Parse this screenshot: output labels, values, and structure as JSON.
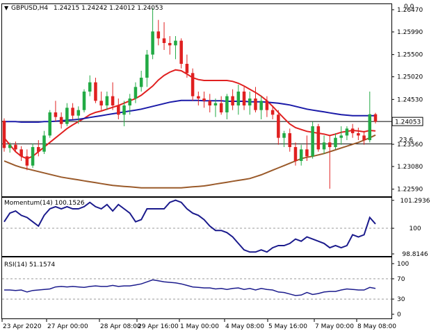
{
  "header": {
    "symbol": "GBPUSD,H4",
    "ohlc": "1.24215 1.24242 1.24012 1.24053",
    "corner_value": "0.0"
  },
  "colors": {
    "bull": "#22aa44",
    "bear": "#e02020",
    "ma_fast": "#e02020",
    "ma_mid": "#1a1aa8",
    "ma_slow": "#9a5a2a",
    "indicator": "#1a1a8c",
    "grid": "#9a9a9a",
    "price_tag_bg": "#ffffff"
  },
  "chart_data": [
    {
      "type": "candlestick",
      "title": "GBPUSD,H4",
      "y_ticks": [
        "1.26470",
        "1.25990",
        "1.25500",
        "1.25020",
        "1.24530",
        "1.24053",
        "1.23560",
        "1.23080",
        "1.22590"
      ],
      "ylim": [
        1.2245,
        1.2656
      ],
      "current_price": "1.24053",
      "fib_level": {
        "label": "23.6",
        "value": 1.2357
      },
      "candles": [
        [
          1.2407,
          1.2412,
          1.234,
          1.2348
        ],
        [
          1.2348,
          1.236,
          1.2338,
          1.2355
        ],
        [
          1.2355,
          1.2362,
          1.234,
          1.2345
        ],
        [
          1.2345,
          1.2352,
          1.232,
          1.233
        ],
        [
          1.233,
          1.2345,
          1.23,
          1.231
        ],
        [
          1.231,
          1.2358,
          1.2305,
          1.235
        ],
        [
          1.235,
          1.2365,
          1.233,
          1.234
        ],
        [
          1.234,
          1.2385,
          1.2335,
          1.2375
        ],
        [
          1.2375,
          1.243,
          1.237,
          1.2425
        ],
        [
          1.2425,
          1.245,
          1.2405,
          1.2415
        ],
        [
          1.2415,
          1.2425,
          1.239,
          1.24
        ],
        [
          1.24,
          1.2445,
          1.2395,
          1.2435
        ],
        [
          1.2435,
          1.2445,
          1.241,
          1.2418
        ],
        [
          1.2418,
          1.2438,
          1.24,
          1.243
        ],
        [
          1.243,
          1.2475,
          1.2425,
          1.247
        ],
        [
          1.247,
          1.2505,
          1.246,
          1.249
        ],
        [
          1.249,
          1.25,
          1.2445,
          1.245
        ],
        [
          1.245,
          1.247,
          1.243,
          1.244
        ],
        [
          1.244,
          1.247,
          1.243,
          1.246
        ],
        [
          1.246,
          1.249,
          1.243,
          1.244
        ],
        [
          1.244,
          1.2455,
          1.241,
          1.242
        ],
        [
          1.242,
          1.245,
          1.2395,
          1.244
        ],
        [
          1.244,
          1.2465,
          1.242,
          1.2455
        ],
        [
          1.2455,
          1.249,
          1.2445,
          1.248
        ],
        [
          1.248,
          1.2515,
          1.247,
          1.25
        ],
        [
          1.25,
          1.256,
          1.248,
          1.255
        ],
        [
          1.255,
          1.265,
          1.254,
          1.26
        ],
        [
          1.26,
          1.2625,
          1.257,
          1.2585
        ],
        [
          1.2585,
          1.262,
          1.256,
          1.2575
        ],
        [
          1.2575,
          1.259,
          1.255,
          1.257
        ],
        [
          1.257,
          1.259,
          1.254,
          1.258
        ],
        [
          1.258,
          1.2585,
          1.252,
          1.253
        ],
        [
          1.253,
          1.255,
          1.25,
          1.251
        ],
        [
          1.251,
          1.252,
          1.245,
          1.246
        ],
        [
          1.246,
          1.247,
          1.244,
          1.2455
        ],
        [
          1.2455,
          1.247,
          1.2435,
          1.245
        ],
        [
          1.245,
          1.2465,
          1.2425,
          1.244
        ],
        [
          1.244,
          1.2455,
          1.2415,
          1.2445
        ],
        [
          1.2445,
          1.246,
          1.242,
          1.2425
        ],
        [
          1.2425,
          1.2465,
          1.241,
          1.246
        ],
        [
          1.246,
          1.2475,
          1.243,
          1.244
        ],
        [
          1.244,
          1.2485,
          1.242,
          1.247
        ],
        [
          1.247,
          1.248,
          1.243,
          1.244
        ],
        [
          1.244,
          1.247,
          1.242,
          1.2455
        ],
        [
          1.2455,
          1.248,
          1.2425,
          1.243
        ],
        [
          1.243,
          1.246,
          1.241,
          1.245
        ],
        [
          1.245,
          1.246,
          1.2415,
          1.243
        ],
        [
          1.243,
          1.244,
          1.241,
          1.242
        ],
        [
          1.242,
          1.243,
          1.2355,
          1.237
        ],
        [
          1.237,
          1.2385,
          1.235,
          1.238
        ],
        [
          1.238,
          1.239,
          1.234,
          1.235
        ],
        [
          1.235,
          1.236,
          1.231,
          1.232
        ],
        [
          1.232,
          1.2355,
          1.231,
          1.2345
        ],
        [
          1.2345,
          1.2375,
          1.232,
          1.233
        ],
        [
          1.233,
          1.2405,
          1.2325,
          1.2395
        ],
        [
          1.2395,
          1.24,
          1.234,
          1.2345
        ],
        [
          1.2345,
          1.2375,
          1.2335,
          1.236
        ],
        [
          1.236,
          1.2375,
          1.226,
          1.235
        ],
        [
          1.235,
          1.238,
          1.2345,
          1.237
        ],
        [
          1.237,
          1.2395,
          1.2355,
          1.2375
        ],
        [
          1.2375,
          1.2395,
          1.2365,
          1.239
        ],
        [
          1.239,
          1.24,
          1.237,
          1.238
        ],
        [
          1.238,
          1.2392,
          1.2365,
          1.2375
        ],
        [
          1.2375,
          1.2385,
          1.2355,
          1.2365
        ],
        [
          1.2365,
          1.247,
          1.236,
          1.2421
        ],
        [
          1.2421,
          1.2424,
          1.2401,
          1.2405
        ]
      ],
      "series": [
        {
          "name": "",
          "color_key": "ma_fast",
          "values": [
            1.237,
            1.2355,
            1.234,
            1.233,
            1.2325,
            1.233,
            1.234,
            1.235,
            1.236,
            1.237,
            1.238,
            1.239,
            1.2398,
            1.2405,
            1.2412,
            1.242,
            1.2425,
            1.2428,
            1.2432,
            1.2436,
            1.244,
            1.2445,
            1.245,
            1.2455,
            1.2462,
            1.2472,
            1.2482,
            1.2495,
            1.2505,
            1.2512,
            1.2517,
            1.2515,
            1.2508,
            1.25,
            1.2496,
            1.2494,
            1.2494,
            1.2494,
            1.2494,
            1.2494,
            1.2492,
            1.2488,
            1.2482,
            1.2475,
            1.2468,
            1.246,
            1.245,
            1.2438,
            1.2425,
            1.2412,
            1.24,
            1.2392,
            1.2388,
            1.2384,
            1.2382,
            1.238,
            1.2378,
            1.2375,
            1.2378,
            1.2382,
            1.2384,
            1.2386,
            1.2385,
            1.2383,
            1.2386,
            1.2385
          ]
        },
        {
          "name": "",
          "color_key": "ma_mid",
          "values": [
            1.2405,
            1.2405,
            1.2405,
            1.2404,
            1.2404,
            1.2404,
            1.2404,
            1.2405,
            1.2405,
            1.2406,
            1.2407,
            1.2408,
            1.2409,
            1.241,
            1.2412,
            1.2414,
            1.2416,
            1.2418,
            1.242,
            1.2422,
            1.2424,
            1.2426,
            1.2428,
            1.243,
            1.2432,
            1.2435,
            1.2438,
            1.2441,
            1.2444,
            1.2447,
            1.2449,
            1.2451,
            1.2451,
            1.2451,
            1.2451,
            1.245,
            1.245,
            1.245,
            1.245,
            1.2449,
            1.2449,
            1.2449,
            1.2449,
            1.2448,
            1.2448,
            1.2448,
            1.2447,
            1.2446,
            1.2445,
            1.2443,
            1.2441,
            1.2438,
            1.2435,
            1.2432,
            1.243,
            1.2428,
            1.2426,
            1.2424,
            1.2422,
            1.242,
            1.2419,
            1.2418,
            1.2418,
            1.2418,
            1.2418,
            1.2418
          ]
        },
        {
          "name": "",
          "color_key": "ma_slow",
          "values": [
            1.232,
            1.2315,
            1.231,
            1.2306,
            1.2303,
            1.23,
            1.2297,
            1.2294,
            1.2291,
            1.2288,
            1.2285,
            1.2283,
            1.2281,
            1.2279,
            1.2277,
            1.2275,
            1.2273,
            1.2271,
            1.2269,
            1.2267,
            1.2266,
            1.2265,
            1.2264,
            1.2263,
            1.2262,
            1.2262,
            1.2262,
            1.2262,
            1.2262,
            1.2262,
            1.2262,
            1.2262,
            1.2263,
            1.2264,
            1.2265,
            1.2266,
            1.2268,
            1.227,
            1.2272,
            1.2274,
            1.2276,
            1.2278,
            1.228,
            1.2282,
            1.2286,
            1.229,
            1.2295,
            1.23,
            1.2305,
            1.231,
            1.2315,
            1.232,
            1.2325,
            1.2328,
            1.233,
            1.2333,
            1.2336,
            1.234,
            1.2344,
            1.2348,
            1.2352,
            1.2356,
            1.236,
            1.2365,
            1.237,
            1.2376
          ]
        }
      ]
    },
    {
      "type": "line",
      "title": "Momentum(14) 100.1526",
      "y_ticks": [
        "101.2936",
        "100",
        "98.8146"
      ],
      "ylim": [
        98.75,
        101.35
      ],
      "series": [
        {
          "name": "Momentum(14)",
          "values": [
            100.3,
            100.7,
            100.8,
            100.6,
            100.5,
            100.3,
            100.1,
            100.6,
            100.9,
            101.0,
            100.9,
            101.0,
            100.9,
            100.9,
            101.0,
            101.2,
            101.0,
            100.9,
            101.1,
            100.8,
            101.1,
            100.9,
            100.7,
            100.3,
            100.4,
            100.9,
            100.9,
            100.9,
            100.9,
            101.2,
            101.3,
            101.2,
            100.9,
            100.7,
            100.6,
            100.4,
            100.1,
            99.9,
            99.9,
            99.8,
            99.6,
            99.3,
            99.0,
            98.9,
            98.9,
            99.0,
            98.9,
            99.1,
            99.2,
            99.2,
            99.3,
            99.5,
            99.4,
            99.6,
            99.5,
            99.4,
            99.3,
            99.1,
            99.2,
            99.1,
            99.2,
            99.7,
            99.6,
            99.7,
            100.5,
            100.2
          ]
        }
      ]
    },
    {
      "type": "line",
      "title": "RSI(14) 51.1574",
      "y_ticks": [
        "100",
        "70",
        "30",
        "0"
      ],
      "ylim": [
        0,
        100
      ],
      "levels": [
        70,
        30
      ],
      "series": [
        {
          "name": "RSI(14)",
          "values": [
            48,
            48,
            47,
            48,
            44,
            47,
            48,
            49,
            50,
            54,
            55,
            54,
            55,
            54,
            53,
            55,
            56,
            55,
            55,
            57,
            55,
            56,
            56,
            58,
            60,
            64,
            68,
            66,
            64,
            63,
            62,
            60,
            57,
            54,
            53,
            52,
            52,
            50,
            51,
            49,
            51,
            52,
            49,
            51,
            48,
            51,
            49,
            48,
            44,
            43,
            40,
            37,
            38,
            43,
            39,
            41,
            44,
            45,
            45,
            48,
            50,
            49,
            48,
            48,
            53,
            51
          ]
        }
      ]
    }
  ],
  "x_axis_labels": [
    "23 Apr 2020",
    "27 Apr 00:00",
    "28 Apr 08:00",
    "29 Apr 16:00",
    "1 May 00:00",
    "4 May 08:00",
    "5 May 16:00",
    "7 May 00:00",
    "8 May 08:00"
  ]
}
